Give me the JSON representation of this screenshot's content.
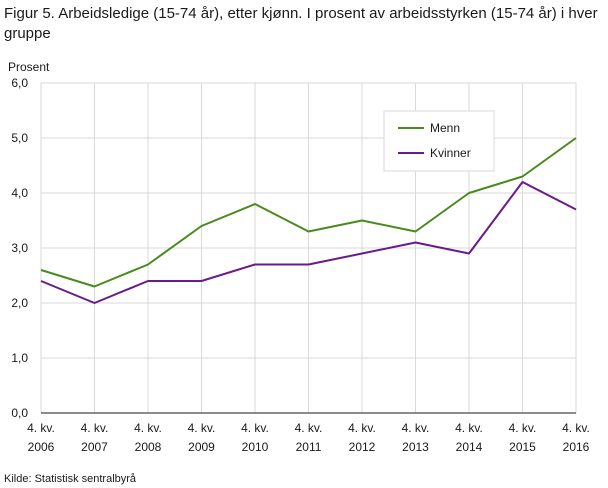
{
  "figure": {
    "title": "Figur 5. Arbeidsledige (15-74 år), etter kjønn. I prosent av arbeidsstyrken (15-74 år) i hver gruppe",
    "source": "Kilde: Statistisk sentralbyrå"
  },
  "chart_data": {
    "type": "line",
    "ylabel": "Prosent",
    "xlabel": "",
    "ylim": [
      0,
      6
    ],
    "yticks": [
      "0,0",
      "1,0",
      "2,0",
      "3,0",
      "4,0",
      "5,0",
      "6,0"
    ],
    "categories": [
      "4. kv. 2006",
      "4. kv. 2007",
      "4. kv. 2008",
      "4. kv. 2009",
      "4. kv. 2010",
      "4. kv. 2011",
      "4. kv. 2012",
      "4. kv. 2013",
      "4. kv. 2014",
      "4. kv. 2015",
      "4. kv. 2016"
    ],
    "category_lines": [
      [
        "4. kv.",
        "2006"
      ],
      [
        "4. kv.",
        "2007"
      ],
      [
        "4. kv.",
        "2008"
      ],
      [
        "4. kv.",
        "2009"
      ],
      [
        "4. kv.",
        "2010"
      ],
      [
        "4. kv.",
        "2011"
      ],
      [
        "4. kv.",
        "2012"
      ],
      [
        "4. kv.",
        "2013"
      ],
      [
        "4. kv.",
        "2014"
      ],
      [
        "4. kv.",
        "2015"
      ],
      [
        "4. kv.",
        "2016"
      ]
    ],
    "series": [
      {
        "name": "Menn",
        "color": "#4a8a1c",
        "values": [
          2.6,
          2.3,
          2.7,
          3.4,
          3.8,
          3.3,
          3.5,
          3.3,
          4.0,
          4.3,
          5.0
        ]
      },
      {
        "name": "Kvinner",
        "color": "#6a1a8a",
        "values": [
          2.4,
          2.0,
          2.4,
          2.4,
          2.7,
          2.7,
          2.9,
          3.1,
          2.9,
          4.2,
          3.7
        ]
      }
    ],
    "grid": true,
    "legend_position": "top-right"
  }
}
